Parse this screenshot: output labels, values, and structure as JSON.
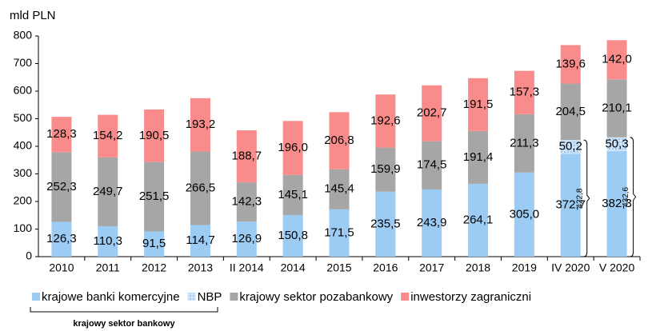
{
  "chart_data": {
    "type": "stacked_bar",
    "y_axis_label": "mld PLN",
    "categories": [
      "2010",
      "2011",
      "2012",
      "2013",
      "II 2014",
      "2014",
      "2015",
      "2016",
      "2017",
      "2018",
      "2019",
      "IV 2020",
      "V 2020"
    ],
    "series": [
      {
        "name": "krajowe banki komercyjne",
        "color": "#9ccbf3",
        "values": [
          126.3,
          110.3,
          91.5,
          114.7,
          126.9,
          150.8,
          171.5,
          235.5,
          243.9,
          264.1,
          305.0,
          372.7,
          382.3
        ],
        "value_labels": [
          "126,3",
          "110,3",
          "91,5",
          "114,7",
          "126,9",
          "150,8",
          "171,5",
          "235,5",
          "243,9",
          "264,1",
          "305,0",
          "372,7",
          "382,3"
        ]
      },
      {
        "name": "NBP",
        "color": "#cfe4f8",
        "pattern": "dots",
        "values": [
          null,
          null,
          null,
          null,
          null,
          null,
          null,
          null,
          null,
          null,
          null,
          50.2,
          50.3
        ],
        "value_labels": [
          null,
          null,
          null,
          null,
          null,
          null,
          null,
          null,
          null,
          null,
          null,
          "50,2",
          "50,3"
        ]
      },
      {
        "name": "krajowy sektor pozabankowy",
        "color": "#a6a6a6",
        "values": [
          252.3,
          249.7,
          251.5,
          266.5,
          142.3,
          145.1,
          145.4,
          159.9,
          174.5,
          191.4,
          211.3,
          204.5,
          210.1
        ],
        "value_labels": [
          "252,3",
          "249,7",
          "251,5",
          "266,5",
          "142,3",
          "145,1",
          "145,4",
          "159,9",
          "174,5",
          "191,4",
          "211,3",
          "204,5",
          "210,1"
        ]
      },
      {
        "name": "inwestorzy zagraniczni",
        "color": "#f98b8b",
        "values": [
          128.3,
          154.2,
          190.5,
          193.2,
          188.7,
          196.0,
          206.8,
          192.6,
          202.7,
          191.5,
          157.3,
          139.6,
          142.0
        ],
        "value_labels": [
          "128,3",
          "154,2",
          "190,5",
          "193,2",
          "188,7",
          "196,0",
          "206,8",
          "192,6",
          "202,7",
          "191,5",
          "157,3",
          "139,6",
          "142,0"
        ]
      }
    ],
    "ylim": [
      0,
      800
    ],
    "yticks": [
      0,
      100,
      200,
      300,
      400,
      500,
      600,
      700,
      800
    ],
    "annotations": [
      "422,8",
      "432,6"
    ],
    "legend_group_label": "krajowy sektor bankowy"
  }
}
